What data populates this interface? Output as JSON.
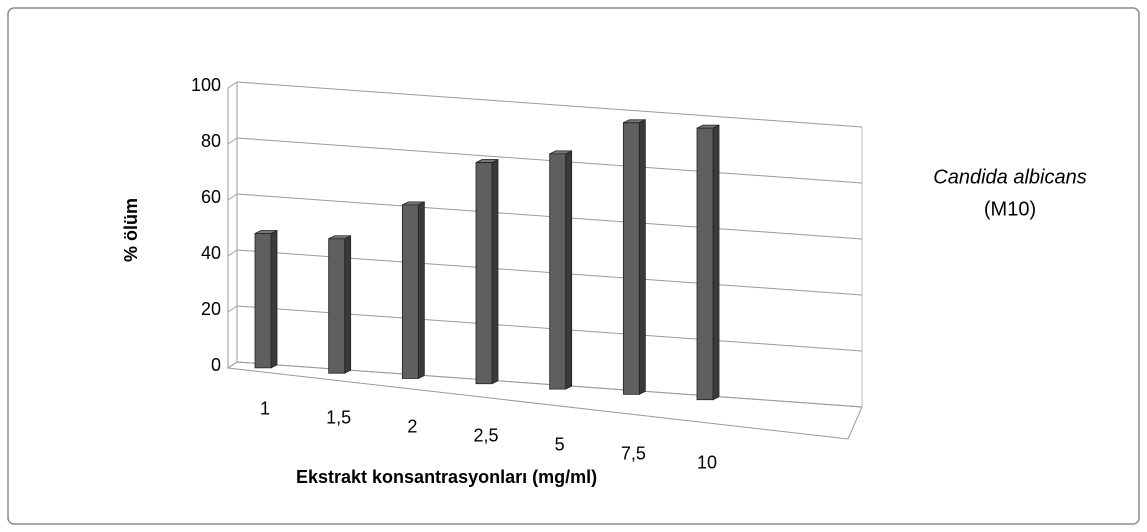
{
  "chart_data": {
    "type": "bar3d",
    "categories": [
      "1",
      "1,5",
      "2",
      "2,5",
      "5",
      "7,5",
      "10"
    ],
    "values": [
      48,
      48,
      62,
      79,
      84,
      97,
      97
    ],
    "color": "#5f5f5f",
    "ylim": [
      0,
      100
    ],
    "yticks": [
      0,
      20,
      40,
      60,
      80,
      100
    ],
    "grid": true,
    "ylabel": "% ölüm",
    "xlabel": "Ekstrakt konsantrasyonları (mg/ml)",
    "annotations": [
      "Candida albicans",
      "(M10)"
    ]
  }
}
